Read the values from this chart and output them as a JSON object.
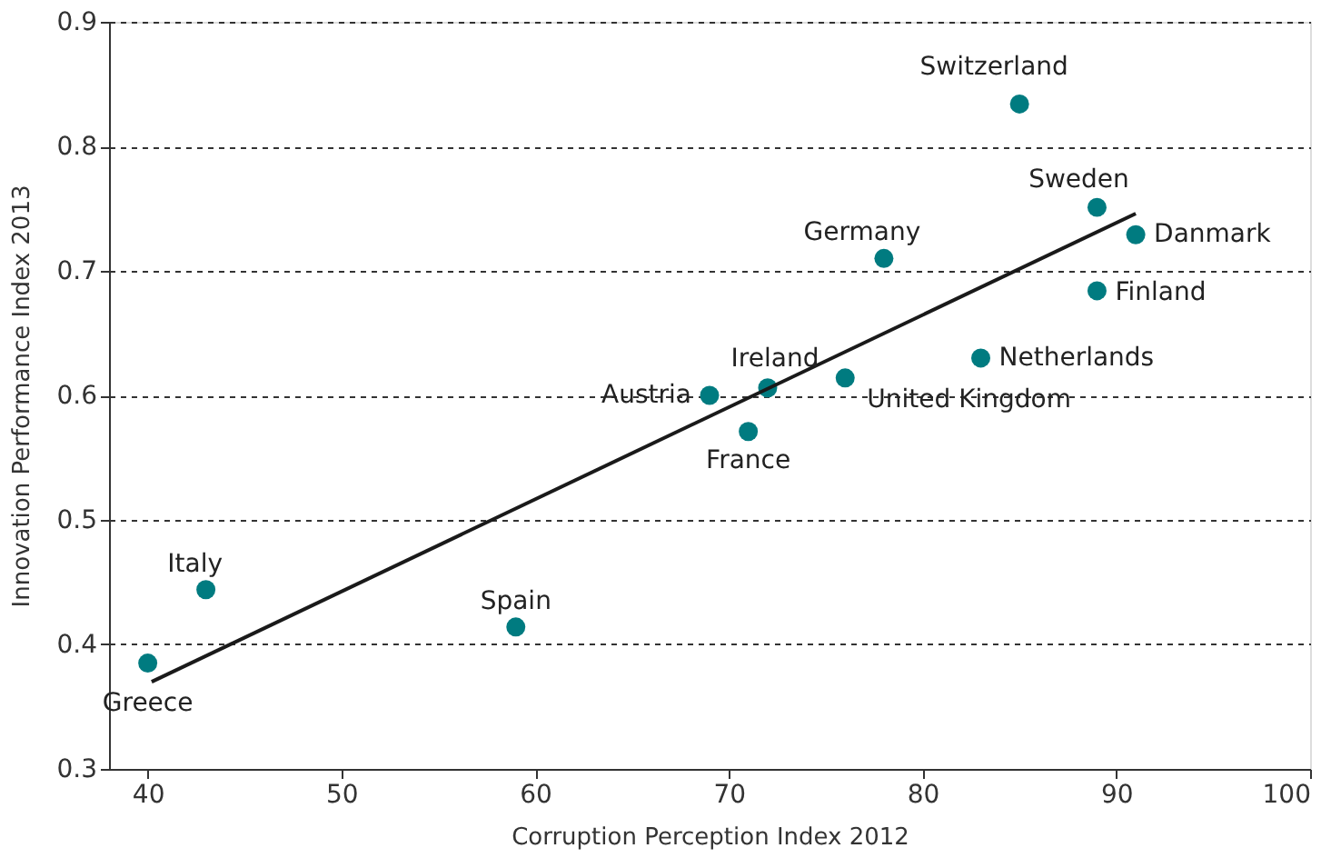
{
  "chart_data": {
    "type": "scatter",
    "xlabel": "Corruption Perception Index 2012",
    "ylabel": "Innovation Performance Index 2013",
    "series": [
      {
        "color": "#007b80",
        "marker": "circle",
        "x": [
          40,
          43,
          59,
          69,
          72,
          71,
          76,
          78,
          83,
          85,
          89,
          89,
          91
        ],
        "values": [
          0.385,
          0.444,
          0.414,
          0.6,
          0.606,
          0.571,
          0.614,
          0.71,
          0.63,
          0.834,
          0.751,
          0.684,
          0.729
        ]
      },
      {
        "type": "line",
        "color": "#1a1a1a",
        "x": [
          40.2,
          91
        ],
        "values": [
          0.37,
          0.746
        ]
      }
    ],
    "annotations": [
      {
        "text": "Greece",
        "x": 40,
        "y": 0.385
      },
      {
        "text": "Italy",
        "x": 43,
        "y": 0.444
      },
      {
        "text": "Spain",
        "x": 59,
        "y": 0.414
      },
      {
        "text": "Austria",
        "x": 69,
        "y": 0.6
      },
      {
        "text": "Ireland",
        "x": 72,
        "y": 0.606
      },
      {
        "text": "France",
        "x": 71,
        "y": 0.571
      },
      {
        "text": "United Kingdom",
        "x": 76,
        "y": 0.614
      },
      {
        "text": "Germany",
        "x": 78,
        "y": 0.71
      },
      {
        "text": "Netherlands",
        "x": 83,
        "y": 0.63
      },
      {
        "text": "Switzerland",
        "x": 85,
        "y": 0.834
      },
      {
        "text": "Sweden",
        "x": 89,
        "y": 0.751
      },
      {
        "text": "Finland",
        "x": 89,
        "y": 0.684
      },
      {
        "text": "Danmark",
        "x": 91,
        "y": 0.729
      }
    ],
    "xlim": [
      38,
      100
    ],
    "xticks": [
      40,
      50,
      60,
      70,
      80,
      90,
      100
    ],
    "ylim": [
      0.3,
      0.9
    ],
    "yticks": [
      0.3,
      0.4,
      0.5,
      0.6,
      0.7,
      0.8,
      0.9
    ],
    "grid": "y"
  }
}
